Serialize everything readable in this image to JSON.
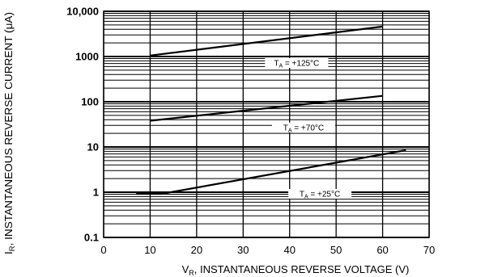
{
  "chart_data": {
    "type": "line",
    "title": "",
    "xlabel": {
      "main": "V",
      "sub": "R",
      "rest": ", INSTANTANEOUS REVERSE VOLTAGE (V)"
    },
    "ylabel": {
      "main": "I",
      "sub": "R",
      "rest": ", INSTANTANEOUS REVERSE CURRENT (μA)"
    },
    "xlim": [
      0,
      70
    ],
    "ylim": [
      0.1,
      10000
    ],
    "yscale": "log",
    "grid": true,
    "x_ticks": [
      0,
      10,
      20,
      30,
      40,
      50,
      60,
      70
    ],
    "x_tick_labels": [
      "0",
      "10",
      "20",
      "30",
      "40",
      "50",
      "60",
      "70"
    ],
    "y_ticks": [
      0.1,
      1,
      10,
      100,
      1000,
      10000
    ],
    "y_tick_labels": [
      "0.1",
      "1",
      "10",
      "100",
      "1000",
      "10,000"
    ],
    "series": [
      {
        "x": [
          10,
          60
        ],
        "y": [
          1050,
          4600
        ]
      },
      {
        "x": [
          10,
          60
        ],
        "y": [
          38,
          135
        ]
      },
      {
        "x": [
          7,
          12.5,
          65
        ],
        "y": [
          0.92,
          0.92,
          8.5
        ]
      }
    ],
    "annotations": [
      {
        "main": "T",
        "sub": "A",
        "rest": " = +125°C",
        "x": 41.5,
        "y": 720
      },
      {
        "main": "T",
        "sub": "A",
        "rest": " = +70°C",
        "x": 43,
        "y": 27
      },
      {
        "main": "T",
        "sub": "A",
        "rest": " = +25°C",
        "x": 46.5,
        "y": 0.92
      }
    ]
  }
}
